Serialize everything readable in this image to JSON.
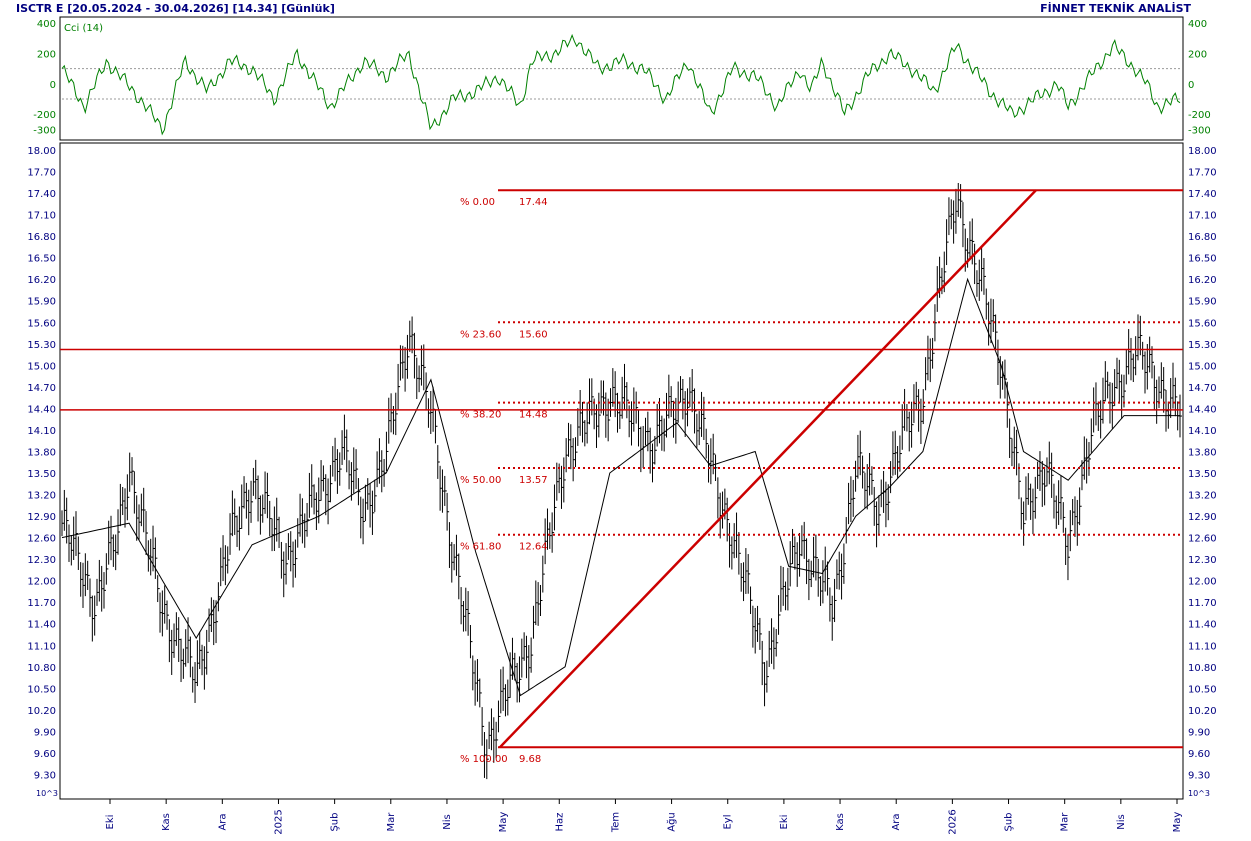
{
  "header": {
    "left": "ISCTR E  [20.05.2024 - 30.04.2026]  [14.34]  [Günlük]",
    "right": "FİNNET TEKNİK ANALİST"
  },
  "colors": {
    "axis_text": "#000080",
    "cci": "#008000",
    "fib": "#cc0000",
    "price": "#000000"
  },
  "chart_data": [
    {
      "type": "line",
      "name_label": "Cci (14)",
      "y_ticks": [
        "400",
        "200",
        "0",
        "-200",
        "-300"
      ],
      "ylim": [
        -350,
        420
      ],
      "reference_lines": [
        100,
        -100
      ],
      "x": [
        0,
        0.02,
        0.04,
        0.07,
        0.09,
        0.11,
        0.13,
        0.15,
        0.17,
        0.19,
        0.21,
        0.24,
        0.27,
        0.29,
        0.31,
        0.33,
        0.35,
        0.37,
        0.39,
        0.41,
        0.42,
        0.44,
        0.46,
        0.48,
        0.5,
        0.52,
        0.54,
        0.56,
        0.58,
        0.6,
        0.62,
        0.64,
        0.66,
        0.67,
        0.68,
        0.7,
        0.72,
        0.74,
        0.76,
        0.78,
        0.8,
        0.83,
        0.85,
        0.87,
        0.89,
        0.9,
        0.92,
        0.94,
        0.96,
        0.97,
        0.98,
        1.0
      ],
      "values": [
        100,
        -150,
        150,
        -100,
        -300,
        150,
        -50,
        150,
        100,
        -100,
        200,
        -150,
        150,
        50,
        200,
        -300,
        -100,
        -50,
        50,
        -150,
        150,
        200,
        300,
        100,
        150,
        100,
        -100,
        150,
        -200,
        100,
        50,
        -150,
        100,
        -50,
        150,
        -200,
        50,
        200,
        100,
        -50,
        250,
        -50,
        -200,
        -100,
        0,
        -150,
        50,
        250,
        100,
        0,
        -150,
        -100
      ]
    },
    {
      "type": "bar",
      "subtype": "ohlc",
      "y_ticks": [
        "18.00",
        "17.70",
        "17.40",
        "17.10",
        "16.80",
        "16.50",
        "16.20",
        "15.90",
        "15.60",
        "15.30",
        "15.00",
        "14.70",
        "14.40",
        "14.10",
        "13.80",
        "13.50",
        "13.20",
        "12.90",
        "12.60",
        "12.30",
        "12.00",
        "11.70",
        "11.40",
        "11.10",
        "10.80",
        "10.50",
        "10.20",
        "9.90",
        "9.60",
        "9.30"
      ],
      "ylim": [
        9.0,
        18.0
      ],
      "x_ticks": [
        "Eki",
        "Kas",
        "Ara",
        "2025",
        "Şub",
        "Mar",
        "Nis",
        "May",
        "Haz",
        "Tem",
        "Ağu",
        "Eyl",
        "Eki",
        "Kas",
        "Ara",
        "2026",
        "Şub",
        "Mar",
        "Nis",
        "May"
      ],
      "scale_note": "10^3",
      "close_keypoints": {
        "t": [
          0,
          0.03,
          0.05,
          0.06,
          0.09,
          0.12,
          0.15,
          0.17,
          0.2,
          0.23,
          0.25,
          0.27,
          0.29,
          0.31,
          0.33,
          0.36,
          0.38,
          0.4,
          0.42,
          0.45,
          0.49,
          0.53,
          0.56,
          0.6,
          0.63,
          0.66,
          0.69,
          0.71,
          0.73,
          0.755,
          0.77,
          0.8,
          0.82,
          0.84,
          0.86,
          0.88,
          0.9,
          0.92,
          0.96,
          1.0
        ],
        "v": [
          12.8,
          11.7,
          12.6,
          13.6,
          11.6,
          10.6,
          12.5,
          13.4,
          12.3,
          13.2,
          13.8,
          13.0,
          13.7,
          15.5,
          14.3,
          11.5,
          9.7,
          10.5,
          11.2,
          13.8,
          14.6,
          13.9,
          14.7,
          12.6,
          10.8,
          12.6,
          11.6,
          13.6,
          13.0,
          14.1,
          14.6,
          17.4,
          16.2,
          15.1,
          12.8,
          13.7,
          12.4,
          14.1,
          15.2,
          14.34
        ]
      },
      "ma_keypoints": {
        "t": [
          0,
          0.06,
          0.12,
          0.17,
          0.23,
          0.29,
          0.33,
          0.37,
          0.41,
          0.45,
          0.49,
          0.55,
          0.58,
          0.62,
          0.65,
          0.68,
          0.71,
          0.74,
          0.77,
          0.79,
          0.81,
          0.84,
          0.86,
          0.9,
          0.95,
          1.0
        ],
        "v": [
          12.6,
          12.8,
          11.2,
          12.5,
          12.9,
          13.5,
          14.8,
          12.4,
          10.4,
          10.8,
          13.5,
          14.2,
          13.6,
          13.8,
          12.2,
          12.1,
          12.9,
          13.3,
          13.8,
          15.0,
          16.2,
          15.0,
          13.8,
          13.4,
          14.3,
          14.3
        ]
      },
      "horizontal_levels": [
        15.22,
        14.38
      ],
      "trendline": {
        "from": 9.68,
        "to": 17.44
      },
      "fibonacci": [
        {
          "pct": "% 0.00",
          "value": "17.44",
          "v": 17.44,
          "style": "solid"
        },
        {
          "pct": "% 23.60",
          "value": "15.60",
          "v": 15.6,
          "style": "dotted"
        },
        {
          "pct": "% 38.20",
          "value": "14.48",
          "v": 14.48,
          "style": "dotted"
        },
        {
          "pct": "% 50.00",
          "value": "13.57",
          "v": 13.57,
          "style": "dotted"
        },
        {
          "pct": "% 61.80",
          "value": "12.64",
          "v": 12.64,
          "style": "dotted"
        },
        {
          "pct": "% 100.00",
          "value": "9.68",
          "v": 9.68,
          "style": "solid"
        }
      ]
    }
  ]
}
